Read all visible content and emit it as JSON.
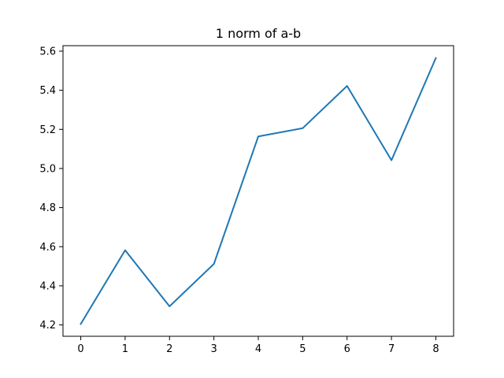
{
  "chart_data": {
    "type": "line",
    "title": "1 norm of a-b",
    "xlabel": "",
    "ylabel": "",
    "x": [
      0,
      1,
      2,
      3,
      4,
      5,
      6,
      7,
      8
    ],
    "series": [
      {
        "values": [
          4.205,
          4.582,
          4.295,
          4.512,
          5.164,
          5.206,
          5.422,
          5.042,
          5.565
        ]
      }
    ],
    "xlim": [
      -0.4,
      8.4
    ],
    "ylim": [
      4.142,
      5.628
    ],
    "xticks": [
      0,
      1,
      2,
      3,
      4,
      5,
      6,
      7,
      8
    ],
    "xtick_labels": [
      "0",
      "1",
      "2",
      "3",
      "4",
      "5",
      "6",
      "7",
      "8"
    ],
    "yticks": [
      4.2,
      4.4,
      4.6,
      4.8,
      5.0,
      5.2,
      5.4,
      5.6
    ],
    "ytick_labels": [
      "4.2",
      "4.4",
      "4.6",
      "4.8",
      "5.0",
      "5.2",
      "5.4",
      "5.6"
    ],
    "grid": false,
    "line_color": "#1f77b4"
  }
}
